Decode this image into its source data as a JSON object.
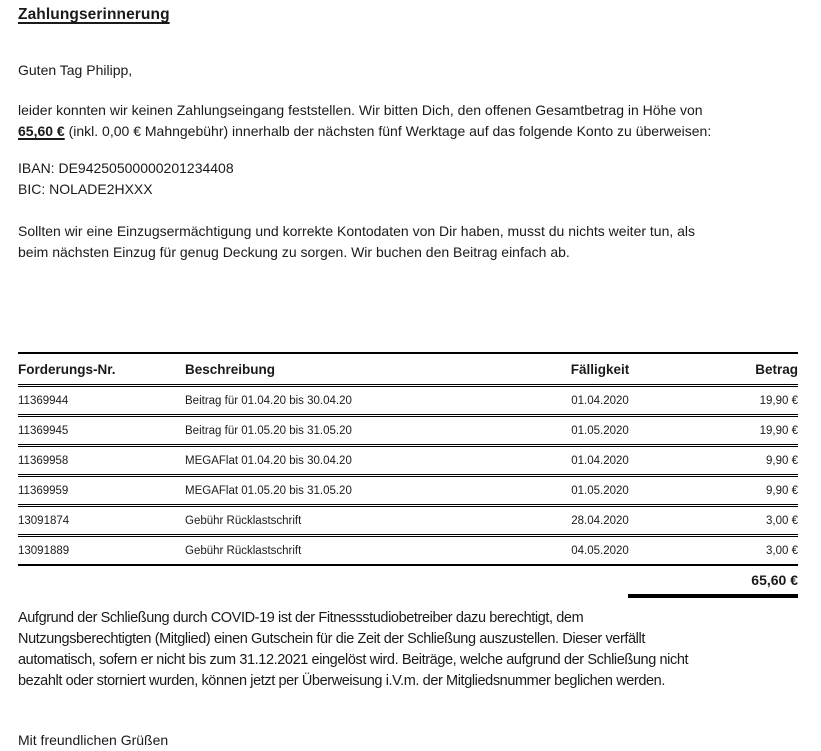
{
  "document": {
    "title": "Zahlungserinnerung",
    "greeting": "Guten Tag Philipp,",
    "para1": {
      "line1": "leider konnten wir keinen Zahlungseingang feststellen. Wir bitten Dich, den offenen Gesamtbetrag in Höhe von",
      "amount": "65,60 €",
      "line2_rest": " (inkl. 0,00 € Mahngebühr) innerhalb der nächsten fünf Werktage auf das folgende Konto zu überweisen:"
    },
    "bank": {
      "iban_line": "IBAN: DE94250500000201234408",
      "bic_line": "BIC: NOLADE2HXXX"
    },
    "para2": {
      "line1": "Sollten wir eine Einzugsermächtigung und korrekte Kontodaten von Dir haben, musst du nichts weiter tun, als",
      "line2": "beim nächsten Einzug für genug Deckung zu sorgen. Wir buchen den Beitrag einfach ab."
    },
    "table": {
      "headers": {
        "nr": "Forderungs-Nr.",
        "desc": "Beschreibung",
        "due": "Fälligkeit",
        "amount": "Betrag"
      },
      "rows": [
        {
          "nr": "11369944",
          "desc": "Beitrag für 01.04.20 bis 30.04.20",
          "due": "01.04.2020",
          "amount": "19,90 €"
        },
        {
          "nr": "11369945",
          "desc": "Beitrag für 01.05.20 bis 31.05.20",
          "due": "01.05.2020",
          "amount": "19,90 €"
        },
        {
          "nr": "11369958",
          "desc": "MEGAFlat 01.04.20 bis 30.04.20",
          "due": "01.04.2020",
          "amount": "9,90 €"
        },
        {
          "nr": "11369959",
          "desc": "MEGAFlat 01.05.20 bis 31.05.20",
          "due": "01.05.2020",
          "amount": "9,90 €"
        },
        {
          "nr": "13091874",
          "desc": "Gebühr Rücklastschrift",
          "due": "28.04.2020",
          "amount": "3,00 €"
        },
        {
          "nr": "13091889",
          "desc": "Gebühr Rücklastschrift",
          "due": "04.05.2020",
          "amount": "3,00 €"
        }
      ],
      "total": "65,60 €"
    },
    "para3": {
      "line1": "Aufgrund der Schließung durch COVID-19 ist der Fitnessstudiobetreiber dazu berechtigt, dem",
      "line2": "Nutzungsberechtigten (Mitglied) einen Gutschein für die Zeit der Schließung auszustellen. Dieser verfällt",
      "line3": "automatisch, sofern er nicht bis zum 31.12.2021 eingelöst wird. Beiträge, welche aufgrund der Schließung nicht",
      "line4": "bezahlt oder storniert wurden, können jetzt per Überweisung i.V.m. der Mitgliedsnummer beglichen werden."
    },
    "closing": "Mit freundlichen Grüßen"
  }
}
